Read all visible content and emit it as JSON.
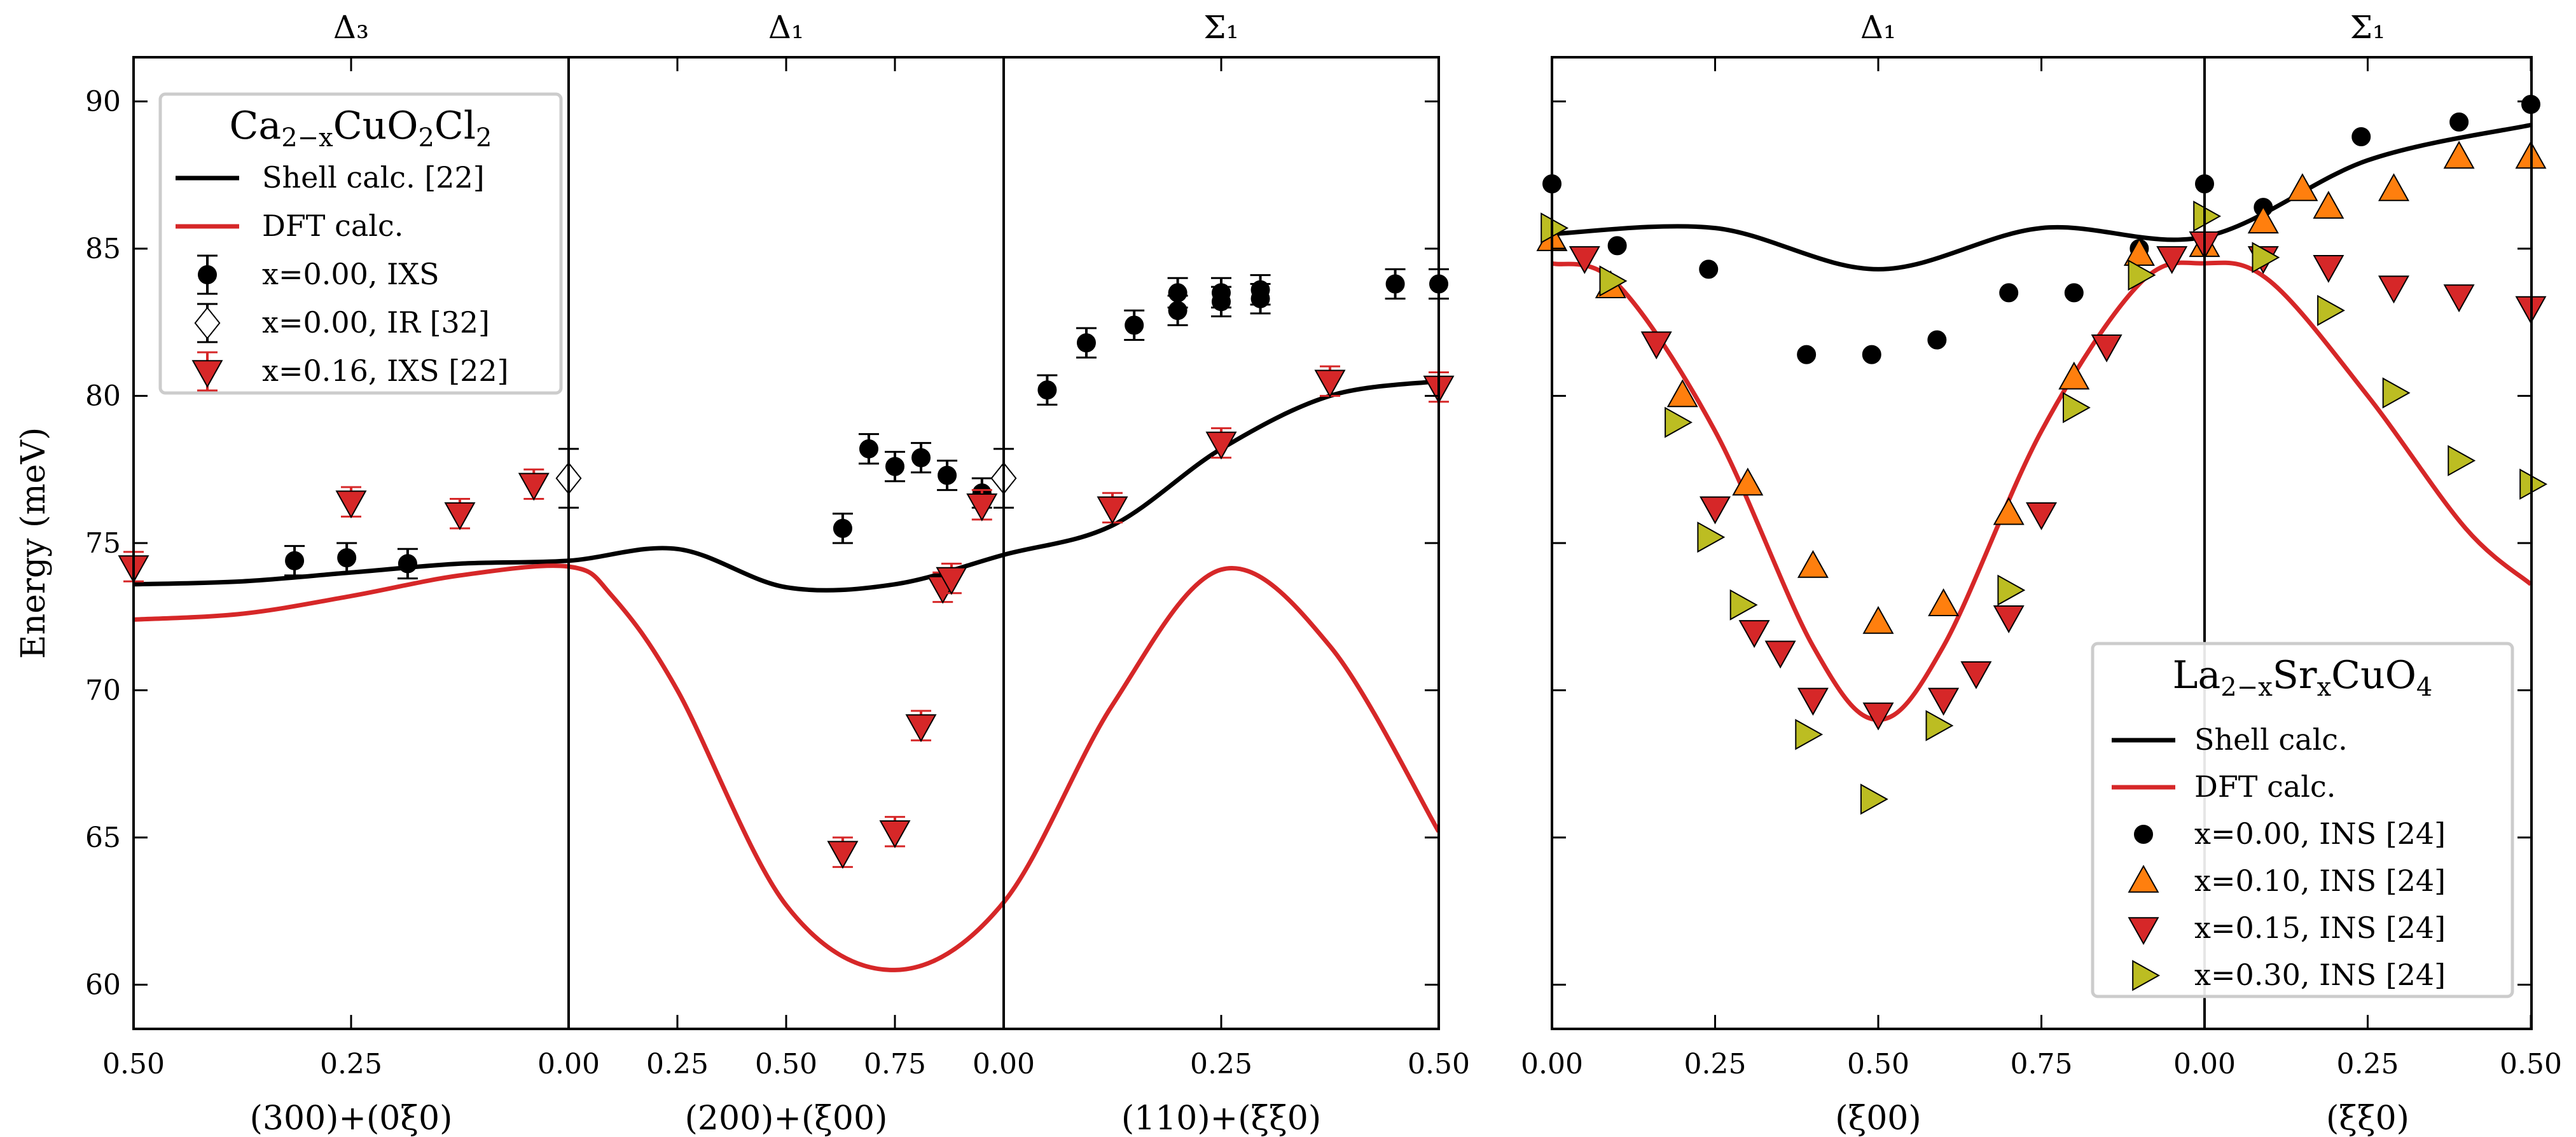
{
  "chart_data": [
    {
      "type": "line+scatter",
      "title": "Ca2-xCuO2Cl2",
      "ylabel": "Energy (meV)",
      "ylim": [
        58.5,
        91.5
      ],
      "yticks": [
        60,
        65,
        70,
        75,
        80,
        85,
        90
      ],
      "segments": [
        {
          "symbol": "Δ₃",
          "xlabel": "(300)+(0ξ0)",
          "ticks": [
            "0.50",
            "0.25",
            "0.00"
          ]
        },
        {
          "symbol": "Δ₁",
          "xlabel": "(200)+(ξ00)",
          "ticks": [
            "0.00",
            "0.25",
            "0.50",
            "0.75",
            "0.00"
          ]
        },
        {
          "symbol": "Σ₁",
          "xlabel": "(110)+(ξξ0)",
          "ticks": [
            "0.00",
            "0.25",
            "0.50"
          ]
        }
      ],
      "legend": {
        "title": "Ca2-xCuO2Cl2",
        "title_main": "Ca",
        "title_sub": "2−x",
        "title_rest": "CuO",
        "title_sub2": "2",
        "title_rest2": "Cl",
        "title_sub3": "2",
        "entries": [
          "Shell calc. [22]",
          "DFT calc.",
          "x=0.00, IXS",
          "x=0.00, IR [32]",
          "x=0.16, IXS [22]"
        ]
      },
      "series": [
        {
          "name": "Shell calc. [22]",
          "kind": "line",
          "color": "#000000",
          "points": [
            [
              0,
              73.6
            ],
            [
              0.25,
              73.7
            ],
            [
              0.5,
              74.0
            ],
            [
              0.75,
              74.3
            ],
            [
              1.0,
              74.4
            ],
            [
              1.25,
              74.8
            ],
            [
              1.5,
              73.5
            ],
            [
              1.75,
              73.6
            ],
            [
              2.0,
              74.6
            ],
            [
              2.25,
              75.6
            ],
            [
              2.5,
              78.2
            ],
            [
              2.75,
              80.0
            ],
            [
              3.0,
              80.5
            ]
          ]
        },
        {
          "name": "DFT calc.",
          "kind": "line",
          "color": "#d62728",
          "points": [
            [
              0,
              72.4
            ],
            [
              0.25,
              72.6
            ],
            [
              0.5,
              73.2
            ],
            [
              0.75,
              73.9
            ],
            [
              1.0,
              74.2
            ],
            [
              1.1,
              73.2
            ],
            [
              1.25,
              70.0
            ],
            [
              1.5,
              62.7
            ],
            [
              1.75,
              60.5
            ],
            [
              2.0,
              62.8
            ],
            [
              2.25,
              69.5
            ],
            [
              2.5,
              74.1
            ],
            [
              2.75,
              71.5
            ],
            [
              3.0,
              65.2
            ]
          ]
        },
        {
          "name": "x=0.00, IXS",
          "kind": "scatter",
          "marker": "circle",
          "color": "#000000",
          "points": [
            [
              0.37,
              74.4
            ],
            [
              0.49,
              74.5
            ],
            [
              0.63,
              74.3
            ],
            [
              1.63,
              75.5
            ],
            [
              1.69,
              78.2
            ],
            [
              1.75,
              77.6
            ],
            [
              1.81,
              77.9
            ],
            [
              1.87,
              77.3
            ],
            [
              1.95,
              76.7
            ],
            [
              2.1,
              80.2
            ],
            [
              2.19,
              81.8
            ],
            [
              2.3,
              82.4
            ],
            [
              2.4,
              82.9
            ],
            [
              2.4,
              83.5
            ],
            [
              2.5,
              83.2
            ],
            [
              2.5,
              83.5
            ],
            [
              2.59,
              83.3
            ],
            [
              2.59,
              83.6
            ],
            [
              2.9,
              83.8
            ],
            [
              3.0,
              83.8
            ]
          ]
        },
        {
          "name": "x=0.00, IR [32]",
          "kind": "scatter",
          "marker": "diamond",
          "color": "#ffffff",
          "points": [
            [
              1.0,
              77.2
            ],
            [
              2.0,
              77.2
            ]
          ]
        },
        {
          "name": "x=0.16, IXS [22]",
          "kind": "scatter",
          "marker": "tri-down",
          "color": "#d62728",
          "points": [
            [
              0.0,
              74.2
            ],
            [
              0.5,
              76.4
            ],
            [
              0.75,
              76.0
            ],
            [
              0.92,
              77.0
            ],
            [
              1.63,
              64.5
            ],
            [
              1.75,
              65.2
            ],
            [
              1.81,
              68.8
            ],
            [
              1.86,
              73.5
            ],
            [
              1.88,
              73.8
            ],
            [
              1.95,
              76.3
            ],
            [
              2.25,
              76.2
            ],
            [
              2.5,
              78.4
            ],
            [
              2.75,
              80.5
            ],
            [
              3.0,
              80.3
            ]
          ]
        }
      ]
    },
    {
      "type": "line+scatter",
      "title": "La2-xSrxCuO4",
      "ylim": [
        58.5,
        91.5
      ],
      "segments": [
        {
          "symbol": "Δ₁",
          "xlabel": "(ξ00)",
          "ticks": [
            "0.00",
            "0.25",
            "0.50",
            "0.75",
            "0.00"
          ]
        },
        {
          "symbol": "Σ₁",
          "xlabel": "(ξξ0)",
          "ticks": [
            "0.00",
            "0.25",
            "0.50"
          ]
        }
      ],
      "legend": {
        "title": "La2-xSrxCuO4",
        "title_main": "La",
        "title_sub": "2−x",
        "title_rest": "Sr",
        "title_sub2": "x",
        "title_rest2": "CuO",
        "title_sub3": "4",
        "entries": [
          "Shell calc.",
          "DFT calc.",
          "x=0.00, INS [24]",
          "x=0.10, INS [24]",
          "x=0.15, INS [24]",
          "x=0.30, INS [24]"
        ]
      },
      "series": [
        {
          "name": "Shell calc.",
          "kind": "line",
          "color": "#000000",
          "points": [
            [
              0,
              85.5
            ],
            [
              0.25,
              85.7
            ],
            [
              0.5,
              84.3
            ],
            [
              0.75,
              85.7
            ],
            [
              1.0,
              85.4
            ],
            [
              1.25,
              88.0
            ],
            [
              1.5,
              89.2
            ]
          ]
        },
        {
          "name": "DFT calc.",
          "kind": "line",
          "color": "#d62728",
          "points": [
            [
              0,
              84.5
            ],
            [
              0.1,
              83.8
            ],
            [
              0.25,
              78.8
            ],
            [
              0.4,
              71.5
            ],
            [
              0.5,
              69.0
            ],
            [
              0.6,
              71.5
            ],
            [
              0.75,
              78.8
            ],
            [
              0.9,
              83.8
            ],
            [
              1.0,
              84.5
            ],
            [
              1.1,
              83.9
            ],
            [
              1.25,
              80.0
            ],
            [
              1.4,
              75.5
            ],
            [
              1.5,
              73.6
            ]
          ]
        },
        {
          "name": "x=0.00, INS [24]",
          "kind": "scatter",
          "marker": "circle",
          "color": "#000000",
          "points": [
            [
              0.0,
              87.2
            ],
            [
              0.1,
              85.1
            ],
            [
              0.24,
              84.3
            ],
            [
              0.39,
              81.4
            ],
            [
              0.49,
              81.4
            ],
            [
              0.59,
              81.9
            ],
            [
              0.7,
              83.5
            ],
            [
              0.8,
              83.5
            ],
            [
              0.9,
              85.0
            ],
            [
              1.0,
              87.2
            ],
            [
              1.09,
              86.4
            ],
            [
              1.24,
              88.8
            ],
            [
              1.39,
              89.3
            ],
            [
              1.5,
              89.9
            ]
          ]
        },
        {
          "name": "x=0.10, INS [24]",
          "kind": "scatter",
          "marker": "tri-up",
          "color": "#ff7f0e",
          "points": [
            [
              0.0,
              85.3
            ],
            [
              0.09,
              83.7
            ],
            [
              0.2,
              80.0
            ],
            [
              0.3,
              77.0
            ],
            [
              0.4,
              74.2
            ],
            [
              0.5,
              72.3
            ],
            [
              0.6,
              72.9
            ],
            [
              0.7,
              76.0
            ],
            [
              0.8,
              80.6
            ],
            [
              0.9,
              84.8
            ],
            [
              1.0,
              85.1
            ],
            [
              1.09,
              85.9
            ],
            [
              1.15,
              87.0
            ],
            [
              1.19,
              86.4
            ],
            [
              1.29,
              87.0
            ],
            [
              1.39,
              88.1
            ],
            [
              1.5,
              88.1
            ]
          ]
        },
        {
          "name": "x=0.15, INS [24]",
          "kind": "scatter",
          "marker": "tri-down",
          "color": "#d62728",
          "points": [
            [
              0.05,
              84.7
            ],
            [
              0.16,
              81.8
            ],
            [
              0.25,
              76.2
            ],
            [
              0.31,
              72.0
            ],
            [
              0.35,
              71.3
            ],
            [
              0.4,
              69.7
            ],
            [
              0.5,
              69.2
            ],
            [
              0.6,
              69.7
            ],
            [
              0.65,
              70.6
            ],
            [
              0.7,
              72.5
            ],
            [
              0.75,
              76.0
            ],
            [
              0.85,
              81.7
            ],
            [
              0.95,
              84.7
            ],
            [
              1.0,
              85.2
            ],
            [
              1.09,
              84.7
            ],
            [
              1.19,
              84.4
            ],
            [
              1.29,
              83.7
            ],
            [
              1.39,
              83.4
            ],
            [
              1.5,
              83.0
            ]
          ]
        },
        {
          "name": "x=0.30, INS [24]",
          "kind": "scatter",
          "marker": "tri-right",
          "color": "#bcbd22",
          "points": [
            [
              0.0,
              85.7
            ],
            [
              0.09,
              83.9
            ],
            [
              0.19,
              79.1
            ],
            [
              0.24,
              75.2
            ],
            [
              0.29,
              72.9
            ],
            [
              0.39,
              68.5
            ],
            [
              0.49,
              66.3
            ],
            [
              0.59,
              68.8
            ],
            [
              0.7,
              73.4
            ],
            [
              0.8,
              79.6
            ],
            [
              0.9,
              84.1
            ],
            [
              1.0,
              86.1
            ],
            [
              1.09,
              84.7
            ],
            [
              1.19,
              82.9
            ],
            [
              1.29,
              80.1
            ],
            [
              1.39,
              77.8
            ],
            [
              1.5,
              77.0
            ]
          ]
        }
      ]
    }
  ]
}
